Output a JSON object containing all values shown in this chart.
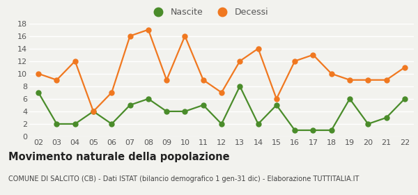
{
  "years": [
    "02",
    "03",
    "04",
    "05",
    "06",
    "07",
    "08",
    "09",
    "10",
    "11",
    "12",
    "13",
    "14",
    "15",
    "16",
    "17",
    "18",
    "19",
    "20",
    "21",
    "22"
  ],
  "nascite": [
    7,
    2,
    2,
    4,
    2,
    5,
    6,
    4,
    4,
    5,
    2,
    8,
    2,
    5,
    1,
    1,
    1,
    6,
    2,
    3,
    6
  ],
  "decessi": [
    10,
    9,
    12,
    4,
    7,
    16,
    17,
    9,
    16,
    9,
    7,
    12,
    14,
    6,
    12,
    13,
    10,
    9,
    9,
    9,
    11
  ],
  "nascite_color": "#4a8c2a",
  "decessi_color": "#f07820",
  "bg_color": "#f2f2ee",
  "grid_color": "#ffffff",
  "ylim": [
    0,
    18
  ],
  "yticks": [
    0,
    2,
    4,
    6,
    8,
    10,
    12,
    14,
    16,
    18
  ],
  "title": "Movimento naturale della popolazione",
  "subtitle": "COMUNE DI SALCITO (CB) - Dati ISTAT (bilancio demografico 1 gen-31 dic) - Elaborazione TUTTITALIA.IT",
  "legend_nascite": "Nascite",
  "legend_decessi": "Decessi",
  "marker_size": 5,
  "line_width": 1.6,
  "title_fontsize": 10.5,
  "subtitle_fontsize": 7,
  "tick_fontsize": 8,
  "legend_fontsize": 9
}
